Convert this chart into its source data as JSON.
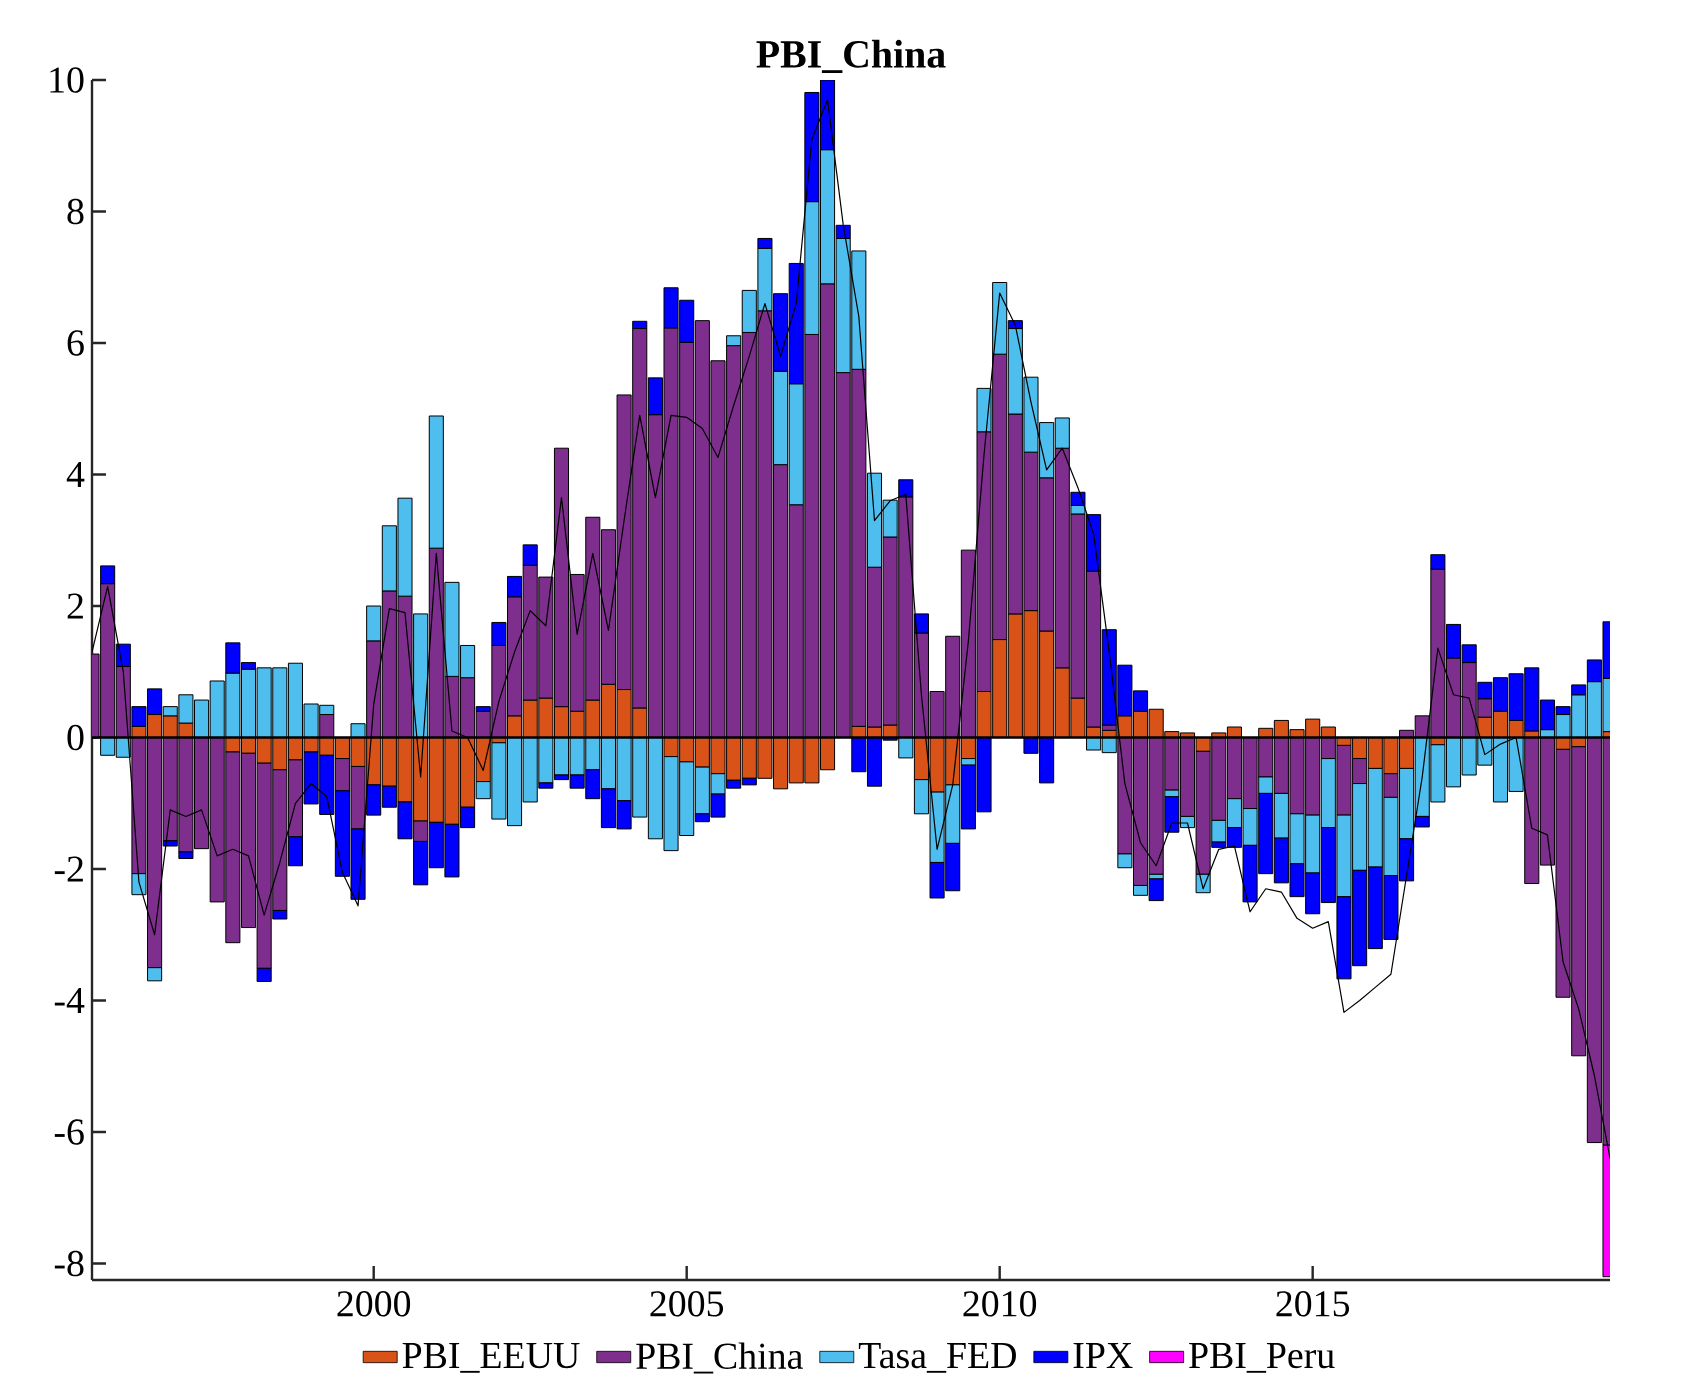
{
  "chart_data": {
    "type": "bar",
    "title": "PBI_China",
    "stacked": true,
    "legend": "bottom",
    "x": [
      1995.5,
      1995.75,
      1996,
      1996.25,
      1996.5,
      1996.75,
      1997,
      1997.25,
      1997.5,
      1997.75,
      1998,
      1998.25,
      1998.5,
      1998.75,
      1999,
      1999.25,
      1999.5,
      1999.75,
      2000,
      2000.25,
      2000.5,
      2000.75,
      2001,
      2001.25,
      2001.5,
      2001.75,
      2002,
      2002.25,
      2002.5,
      2002.75,
      2003,
      2003.25,
      2003.5,
      2003.75,
      2004,
      2004.25,
      2004.5,
      2004.75,
      2005,
      2005.25,
      2005.5,
      2005.75,
      2006,
      2006.25,
      2006.5,
      2006.75,
      2007,
      2007.25,
      2007.5,
      2007.75,
      2008,
      2008.25,
      2008.5,
      2008.75,
      2009,
      2009.25,
      2009.5,
      2009.75,
      2010,
      2010.25,
      2010.5,
      2010.75,
      2011,
      2011.25,
      2011.5,
      2011.75,
      2012,
      2012.25,
      2012.5,
      2012.75,
      2013,
      2013.25,
      2013.5,
      2013.75,
      2014,
      2014.25,
      2014.5,
      2014.75,
      2015,
      2015.25,
      2015.5,
      2015.75,
      2016,
      2016.25,
      2016.5,
      2016.75,
      2017,
      2017.25,
      2017.5,
      2017.75,
      2018,
      2018.25,
      2018.5,
      2018.75,
      2019,
      2019.25,
      2019.5,
      2019.75
    ],
    "xlim": [
      1995.5,
      2019.75
    ],
    "xticks": [
      2000,
      2005,
      2010,
      2015
    ],
    "ylim": [
      -8.25,
      10
    ],
    "yticks": [
      -8,
      -6,
      -4,
      -2,
      0,
      2,
      4,
      6,
      8,
      10
    ],
    "ref_lines": [
      {
        "axis": "y",
        "value": 0,
        "color": "#000000"
      }
    ],
    "series": [
      {
        "name": "PBI_EEUU",
        "color": "#d95319",
        "values": [
          0,
          0,
          0,
          0.17,
          0.35,
          0.33,
          0.22,
          null,
          null,
          -0.22,
          -0.24,
          -0.39,
          -0.49,
          -0.34,
          -0.22,
          -0.27,
          -0.32,
          -0.44,
          -0.72,
          -0.74,
          -0.98,
          -1.27,
          -1.29,
          -1.32,
          -1.06,
          -0.67,
          -0.08,
          0.33,
          0.57,
          0.6,
          0.47,
          0.4,
          0.57,
          0.81,
          0.73,
          0.45,
          0,
          -0.29,
          -0.37,
          -0.45,
          -0.55,
          -0.65,
          -0.62,
          -0.62,
          -0.78,
          -0.69,
          -0.69,
          -0.49,
          0,
          0.17,
          0.16,
          0.19,
          null,
          -0.64,
          -0.83,
          -0.72,
          -0.32,
          0.7,
          1.49,
          1.88,
          1.93,
          1.62,
          1.06,
          0.6,
          0.16,
          0.11,
          0.33,
          0.4,
          0.43,
          0.09,
          0.07,
          -0.21,
          0.07,
          0.16,
          0,
          0.14,
          0.26,
          0.12,
          0.28,
          0.16,
          -0.12,
          -0.32,
          -0.47,
          -0.55,
          -0.47,
          0,
          -0.11,
          0,
          0,
          0.31,
          0.4,
          0.26,
          0.1,
          0,
          -0.18,
          -0.14,
          0,
          0.09
        ]
      },
      {
        "name": "PBI_China",
        "color": "#7e2f8e",
        "values": [
          1.27,
          2.34,
          1.08,
          -2.07,
          -3.5,
          -1.57,
          -1.74,
          -1.69,
          -2.5,
          -2.9,
          -2.65,
          -3.12,
          -2.14,
          -1.17,
          0,
          0.35,
          -0.49,
          -0.95,
          1.47,
          2.23,
          2.15,
          -0.31,
          2.88,
          0.93,
          0.91,
          0.4,
          1.4,
          1.81,
          2.05,
          1.84,
          3.93,
          2.08,
          2.78,
          2.35,
          4.48,
          5.77,
          4.91,
          6.23,
          6.01,
          6.34,
          5.73,
          5.96,
          6.16,
          6.49,
          4.15,
          3.54,
          6.13,
          6.9,
          5.55,
          5.43,
          2.43,
          2.86,
          3.66,
          1.59,
          0.7,
          1.54,
          2.85,
          3.95,
          4.34,
          3.04,
          2.41,
          2.33,
          3.34,
          2.8,
          2.37,
          0.08,
          -1.77,
          -2.25,
          -2.08,
          -0.8,
          -1.2,
          -1.87,
          -1.26,
          -0.93,
          -1.08,
          -0.6,
          -0.85,
          -1.16,
          -1.18,
          -0.32,
          -1.06,
          -0.38,
          0,
          -0.36,
          0.11,
          0.33,
          2.56,
          1.21,
          1.14,
          0.28,
          0,
          0,
          -2.22,
          -1.94,
          -3.77,
          -4.7,
          -6.16,
          -6.2
        ]
      },
      {
        "name": "Tasa_FED",
        "color": "#4dbeee",
        "values": [
          0,
          -0.27,
          -0.3,
          -0.32,
          -0.2,
          0.14,
          0.43,
          0.57,
          0.86,
          0.98,
          1.04,
          1.06,
          1.06,
          1.13,
          0.51,
          0.14,
          0,
          0.21,
          0.53,
          0.99,
          1.49,
          1.88,
          2.01,
          1.43,
          0.49,
          -0.26,
          -1.16,
          -1.34,
          -0.98,
          -0.69,
          -0.57,
          -0.57,
          -0.49,
          -0.78,
          -0.96,
          -1.21,
          -1.54,
          -1.43,
          -1.12,
          -0.71,
          -0.31,
          0.15,
          0.64,
          0.95,
          1.42,
          1.84,
          2.02,
          2.04,
          2.04,
          1.8,
          1.43,
          0.56,
          -0.31,
          -0.52,
          -1.07,
          -0.89,
          -0.1,
          0.66,
          1.09,
          1.3,
          1.14,
          0.84,
          0.46,
          0.13,
          -0.19,
          -0.23,
          -0.21,
          -0.15,
          -0.07,
          -0.1,
          -0.17,
          -0.28,
          -0.33,
          -0.44,
          -0.56,
          -0.25,
          -0.68,
          -0.76,
          -0.88,
          -1.05,
          -1.24,
          -1.32,
          -1.5,
          -1.19,
          -1.07,
          -1.2,
          -0.87,
          -0.75,
          -0.57,
          -0.42,
          -0.98,
          -0.82,
          0,
          0.12,
          0.35,
          0.65,
          0.85,
          0.81
        ]
      },
      {
        "name": "IPX",
        "color": "#0000ff",
        "values": [
          0,
          0.27,
          0.34,
          0.3,
          0.39,
          -0.08,
          -0.1,
          0,
          0,
          0.46,
          0.1,
          -0.2,
          -0.13,
          -0.44,
          -0.79,
          -0.9,
          -1.3,
          -1.07,
          -0.46,
          -0.32,
          -0.56,
          -0.66,
          -0.69,
          -0.8,
          -0.31,
          0.07,
          0.35,
          0.31,
          0.31,
          -0.08,
          -0.07,
          -0.2,
          -0.44,
          -0.59,
          -0.43,
          0.11,
          0.56,
          0.61,
          0.64,
          -0.12,
          -0.35,
          -0.12,
          -0.1,
          0.15,
          1.18,
          1.83,
          1.66,
          1.06,
          0.2,
          -0.52,
          -0.74,
          -0.04,
          0.26,
          0.29,
          -0.54,
          -0.72,
          -0.97,
          -1.13,
          0,
          0.12,
          -0.24,
          -0.69,
          0,
          0.2,
          0.86,
          1.45,
          0.77,
          0.31,
          -0.33,
          -0.54,
          0,
          0,
          -0.08,
          -0.3,
          -0.86,
          -1.22,
          -0.68,
          -0.5,
          -0.62,
          -1.14,
          -1.25,
          -1.45,
          -1.24,
          -0.97,
          -0.64,
          -0.16,
          0.22,
          0.51,
          0.27,
          0.25,
          0.51,
          0.71,
          0.96,
          0.45,
          0.12,
          0.15,
          0.33,
          0.86
        ]
      },
      {
        "name": "PBI_Peru",
        "color": "#ff00ff",
        "values": [
          0,
          0,
          0,
          0,
          0,
          0,
          0,
          0,
          0,
          0,
          0,
          0,
          0,
          0,
          0,
          0,
          0,
          0,
          0,
          0,
          0,
          0,
          0,
          0,
          0,
          0,
          0,
          0,
          0,
          0,
          0,
          0,
          0,
          0,
          0,
          0,
          0,
          0,
          0,
          0,
          0,
          0,
          0,
          0,
          0,
          0,
          0,
          0,
          0,
          0,
          0,
          0,
          0,
          0,
          0,
          0,
          0,
          0,
          0,
          0,
          0,
          0,
          0,
          0,
          0,
          0,
          0,
          0,
          0,
          0,
          0,
          0,
          0,
          0,
          0,
          0,
          0,
          0,
          0,
          0,
          0,
          0,
          0,
          0,
          0,
          0,
          0,
          0,
          0,
          0,
          0,
          0,
          0,
          0,
          0,
          0,
          0,
          -2.0
        ]
      },
      {
        "type": "line",
        "color": "#000000",
        "values": [
          1.3,
          2.3,
          1.0,
          -2.2,
          -3.0,
          -1.1,
          -1.2,
          -1.1,
          -1.8,
          -1.7,
          -1.8,
          -2.7,
          -1.9,
          -1.0,
          -0.7,
          -0.9,
          -2.05,
          -2.56,
          0.5,
          1.96,
          1.9,
          -0.6,
          2.8,
          0.1,
          0.0,
          -0.5,
          0.55,
          1.3,
          1.93,
          1.7,
          3.65,
          1.57,
          2.8,
          1.63,
          3.3,
          4.9,
          3.65,
          4.9,
          4.87,
          4.7,
          4.26,
          5.05,
          5.8,
          6.6,
          5.8,
          6.6,
          9.1,
          9.7,
          7.8,
          6.4,
          3.3,
          3.6,
          3.7,
          0.65,
          -1.7,
          -0.72,
          1.47,
          4.3,
          6.76,
          6.27,
          5.1,
          4.07,
          4.4,
          3.8,
          3.1,
          1.3,
          -0.7,
          -1.6,
          -1.95,
          -1.3,
          -1.3,
          -2.3,
          -1.7,
          -1.65,
          -2.65,
          -2.3,
          -2.35,
          -2.75,
          -2.9,
          -2.8,
          -4.18,
          -4.0,
          -3.8,
          -3.6,
          -2.1,
          -0.6,
          1.36,
          0.65,
          0.6,
          -0.26,
          -0.1,
          0.0,
          -1.38,
          -1.48,
          -3.41,
          -4.13,
          -5.14,
          -6.4
        ]
      }
    ]
  }
}
